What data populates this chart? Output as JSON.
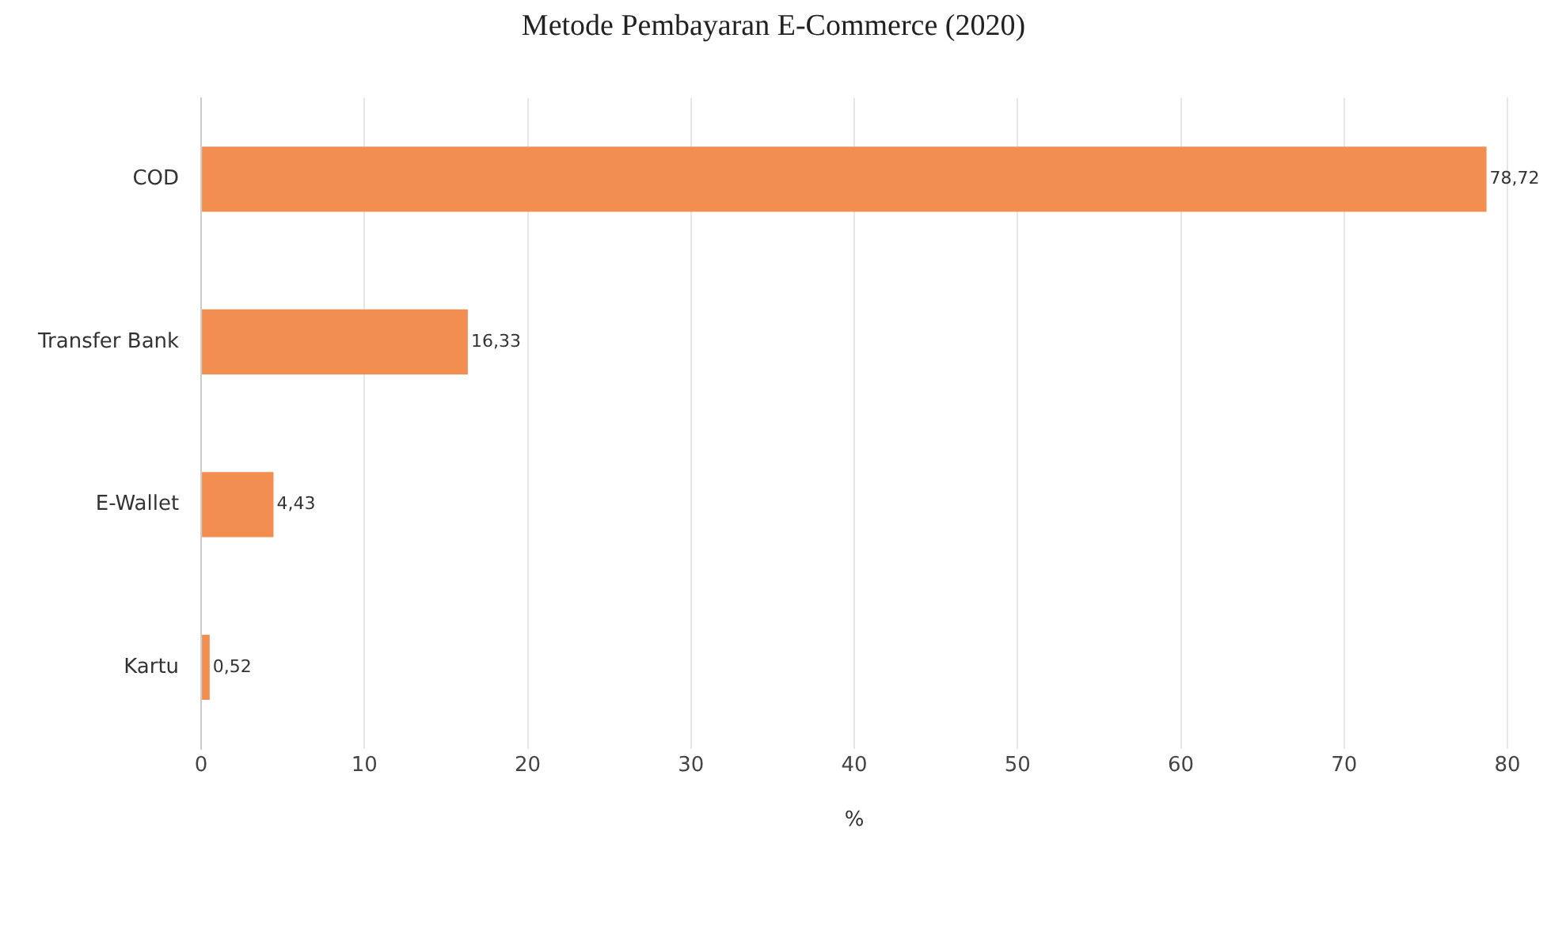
{
  "chart_data": {
    "type": "bar",
    "orientation": "horizontal",
    "title": "Metode Pembayaran E-Commerce (2020)",
    "xlabel": "%",
    "categories": [
      "COD",
      "Transfer Bank",
      "E-Wallet",
      "Kartu"
    ],
    "values": [
      78.72,
      16.33,
      4.43,
      0.52
    ],
    "value_labels": [
      "78,72",
      "16,33",
      "4,43",
      "0,52"
    ],
    "color": "#f28e4f",
    "xlim": [
      0,
      80
    ],
    "xticks": [
      0,
      10,
      20,
      30,
      40,
      50,
      60,
      70,
      80
    ],
    "grid": "x",
    "legend": false
  }
}
